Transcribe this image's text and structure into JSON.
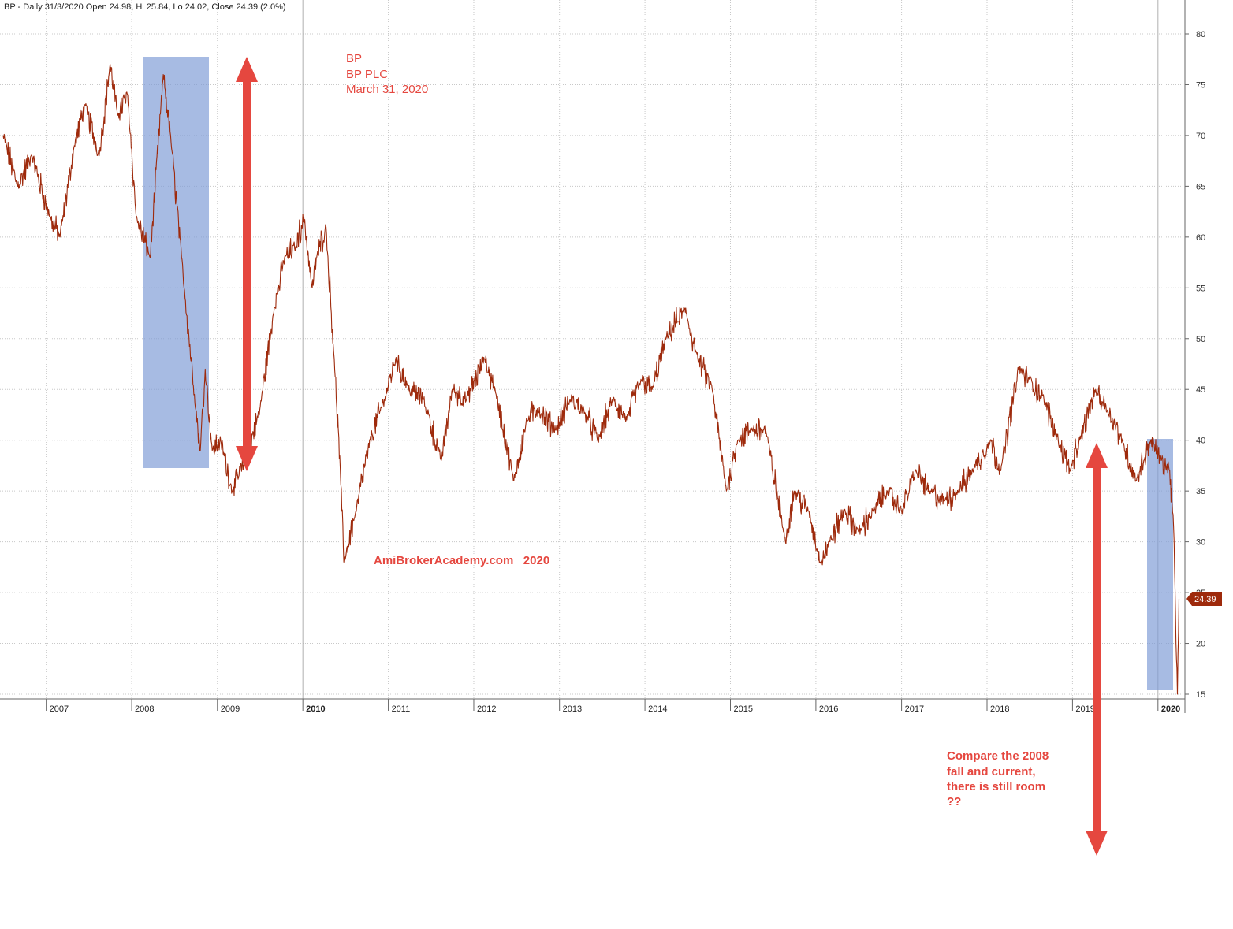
{
  "header_text": "BP - Daily 31/3/2020 Open 24.98, Hi 25.84, Lo 24.02, Close 24.39 (2.0%)",
  "colors": {
    "price_line": "#9e2a0c",
    "annotation": "#e5473f",
    "highlight": "#7e9bd6",
    "grid": "#c8c8c8",
    "last_label_bg": "#9e2a0c"
  },
  "annotations": {
    "title_lines": [
      "BP",
      "BP PLC",
      "March 31, 2020"
    ],
    "watermark": "AmiBrokerAcademy.com   2020",
    "comment_lines": [
      "Compare the 2008",
      "fall and current,",
      "there is still room",
      "??"
    ]
  },
  "last_price_label": "24.39",
  "chart_data": {
    "type": "line",
    "title": "",
    "xlabel": "",
    "ylabel": "",
    "ylim": [
      15,
      80
    ],
    "yticks": [
      15,
      20,
      25,
      30,
      35,
      40,
      45,
      50,
      55,
      60,
      65,
      70,
      75,
      80
    ],
    "xticks": [
      "2007",
      "2008",
      "2009",
      "2010",
      "2011",
      "2012",
      "2013",
      "2014",
      "2015",
      "2016",
      "2017",
      "2018",
      "2019",
      "2020"
    ],
    "xticks_bold": [
      "2010",
      "2020"
    ],
    "x_range": [
      "2006-07-01",
      "2020-04-15"
    ],
    "grid": true,
    "series": [
      {
        "x": [
          "2006-07-01",
          "2006-09-01",
          "2006-11-01",
          "2007-01-15",
          "2007-03-01",
          "2007-05-01",
          "2007-06-15",
          "2007-08-15",
          "2007-10-01",
          "2007-11-01",
          "2007-12-15",
          "2008-01-20",
          "2008-03-20",
          "2008-05-15",
          "2008-06-15",
          "2008-08-01",
          "2008-10-01",
          "2008-10-20",
          "2008-11-10",
          "2008-12-10",
          "2009-01-15",
          "2009-03-05",
          "2009-05-01",
          "2009-07-01",
          "2009-09-01",
          "2009-10-15",
          "2009-12-01",
          "2010-01-05",
          "2010-02-10",
          "2010-03-01",
          "2010-04-10",
          "2010-05-15",
          "2010-06-10",
          "2010-06-25",
          "2010-08-15",
          "2010-10-15",
          "2010-12-15",
          "2011-02-01",
          "2011-04-01",
          "2011-06-01",
          "2011-08-15",
          "2011-10-01",
          "2011-12-01",
          "2012-02-15",
          "2012-04-01",
          "2012-06-20",
          "2012-08-15",
          "2012-10-01",
          "2012-12-15",
          "2013-02-15",
          "2013-04-15",
          "2013-06-15",
          "2013-08-15",
          "2013-10-15",
          "2013-12-15",
          "2014-02-01",
          "2014-04-01",
          "2014-06-20",
          "2014-08-15",
          "2014-10-15",
          "2014-12-15",
          "2015-02-01",
          "2015-04-01",
          "2015-06-01",
          "2015-08-24",
          "2015-10-01",
          "2015-12-01",
          "2016-01-20",
          "2016-03-01",
          "2016-05-01",
          "2016-07-01",
          "2016-09-01",
          "2016-11-01",
          "2017-01-01",
          "2017-03-01",
          "2017-05-01",
          "2017-07-01",
          "2017-09-01",
          "2017-11-01",
          "2018-01-15",
          "2018-03-01",
          "2018-05-15",
          "2018-07-01",
          "2018-09-01",
          "2018-11-01",
          "2018-12-24",
          "2019-02-01",
          "2019-04-10",
          "2019-06-01",
          "2019-08-01",
          "2019-10-01",
          "2019-12-01",
          "2020-01-15",
          "2020-02-20",
          "2020-03-01",
          "2020-03-10",
          "2020-03-18",
          "2020-03-24",
          "2020-03-31"
        ],
        "y": [
          70,
          65,
          68,
          62,
          60,
          69,
          73,
          68,
          77,
          72,
          74,
          62,
          58,
          76,
          70,
          58,
          43,
          39,
          47,
          39,
          40,
          35,
          38,
          43,
          53,
          58,
          59,
          62,
          55,
          58,
          61,
          48,
          37,
          28,
          33,
          40,
          44,
          48,
          45,
          44,
          38,
          45,
          44,
          48,
          45,
          36,
          42,
          43,
          41,
          44,
          43,
          40,
          44,
          42,
          46,
          45,
          50,
          53,
          48,
          45,
          35,
          40,
          41,
          41,
          30,
          35,
          33,
          28,
          30,
          33,
          31,
          33,
          35,
          33,
          37,
          35,
          34,
          35,
          37,
          40,
          37,
          47,
          46,
          44,
          40,
          37,
          40,
          45,
          43,
          40,
          36,
          40,
          38,
          37,
          34,
          30,
          20,
          15,
          24.39
        ]
      }
    ]
  }
}
